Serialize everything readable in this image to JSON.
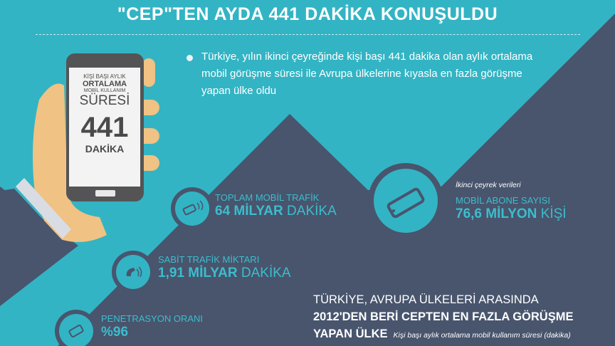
{
  "title": "\"CEP\"TEN AYDA 441 DAKİKA KONUŞULDU",
  "intro": "Türkiye, yılın ikinci çeyreğinde kişi başı 441 dakika olan aylık ortalama mobil görüşme süresi ile Avrupa ülkelerine kıyasla en fazla görüşme yapan ülke oldu",
  "phone_screen": {
    "line1": "KİŞİ BAŞI AYLIK",
    "line2": "ORTALAMA",
    "line3": "MOBİL KULLANIM",
    "line4": "SÜRESİ",
    "value": "441",
    "unit": "DAKİKA"
  },
  "stats": {
    "toplam": {
      "icon": "phone-vibrate-icon",
      "label": "TOPLAM MOBİL TRAFİK",
      "value": "64 MİLYAR",
      "unit": "DAKİKA"
    },
    "sabit": {
      "icon": "telephone-handset-icon",
      "label": "SABİT TRAFİK MİKTARI",
      "value": "1,91 MİLYAR",
      "unit": "DAKİKA"
    },
    "penetrasyon": {
      "icon": "smartphone-icon",
      "label": "PENETRASYON ORANI",
      "value": "%96"
    },
    "abone": {
      "icon": "smartphone-icon",
      "note": "İkinci çeyrek verileri",
      "label": "MOBİL ABONE SAYISI",
      "value": "76,6 MİLYON",
      "unit": "KİŞİ"
    }
  },
  "bottom": {
    "line1": "TÜRKİYE, AVRUPA ÜLKELERİ ARASINDA",
    "line2": "2012'DEN BERİ CEPTEN EN FAZLA GÖRÜŞME",
    "line3": "YAPAN ÜLKE",
    "caption": "Kişi başı aylık ortalama mobil kullanım süresi (dakika)"
  },
  "colors": {
    "teal": "#33b4c4",
    "dark": "#48556d",
    "accent": "#3cbdcd",
    "skin": "#f0c283"
  }
}
